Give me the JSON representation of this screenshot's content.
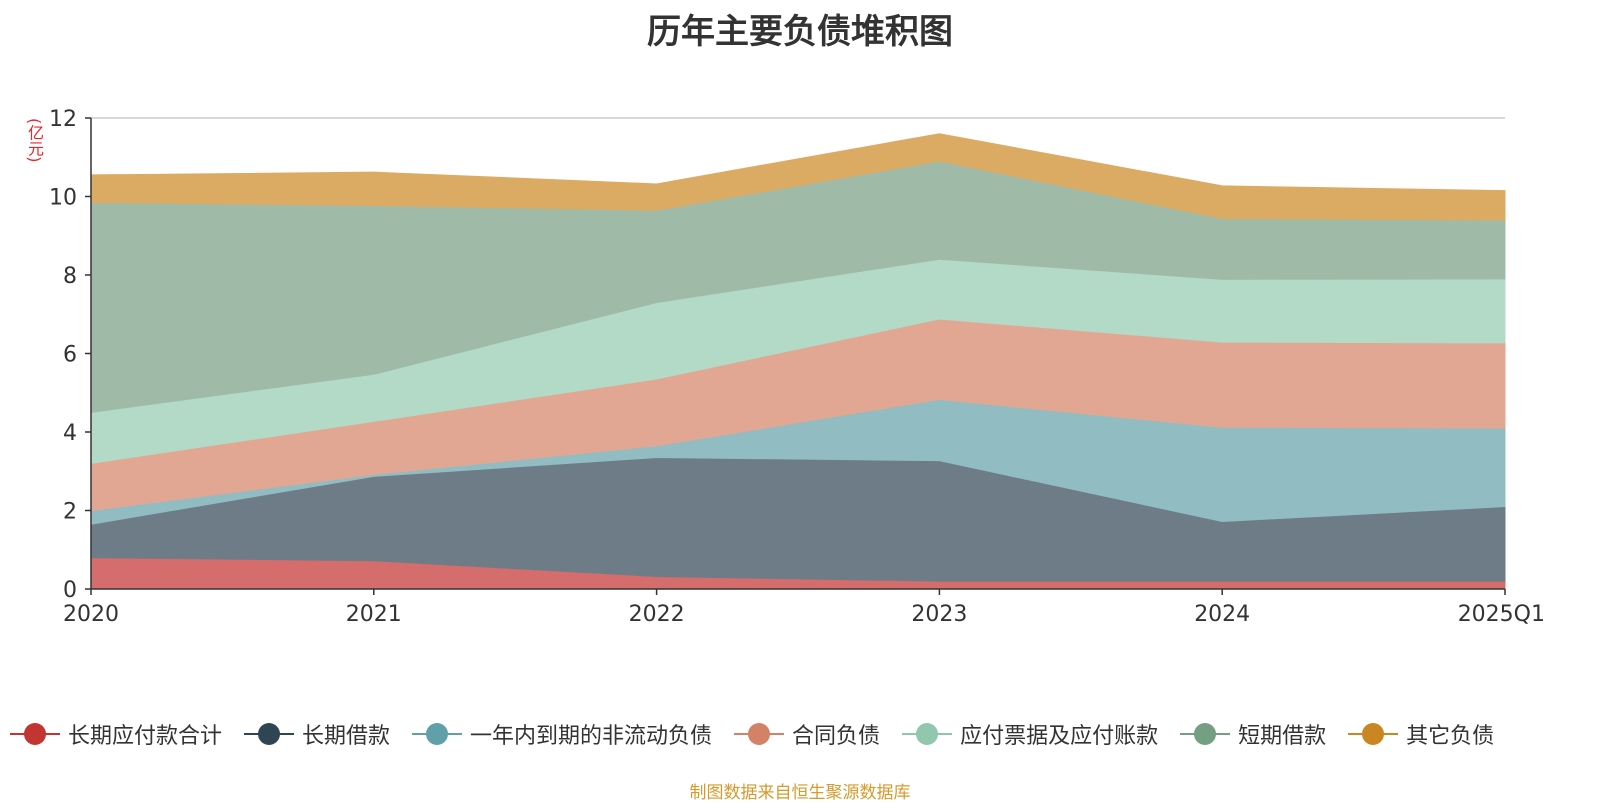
{
  "chart_data": {
    "type": "area",
    "stacked": true,
    "title": "历年主要负债堆积图",
    "ylabel": "(亿元)",
    "xlabel": "",
    "ylim": [
      0,
      12
    ],
    "yticks": [
      0,
      2,
      4,
      6,
      8,
      10,
      12
    ],
    "categories": [
      "2020",
      "2021",
      "2022",
      "2023",
      "2024",
      "2025Q1"
    ],
    "series": [
      {
        "name": "长期应付款合计",
        "color": "#c23531",
        "fill": "#d46d6b",
        "values": [
          0.8,
          0.72,
          0.32,
          0.2,
          0.2,
          0.2
        ]
      },
      {
        "name": "长期借款",
        "color": "#2f4554",
        "fill": "#6e7c88",
        "values": [
          0.85,
          2.15,
          3.03,
          3.07,
          1.52,
          1.9
        ]
      },
      {
        "name": "一年内到期的非流动负债",
        "color": "#61a0a8",
        "fill": "#91bcc2",
        "values": [
          0.35,
          0.05,
          0.3,
          1.56,
          2.4,
          2.0
        ]
      },
      {
        "name": "合同负债",
        "color": "#d48265",
        "fill": "#e2a792",
        "values": [
          1.2,
          1.35,
          1.7,
          2.05,
          2.17,
          2.17
        ]
      },
      {
        "name": "应付票据及应付账款",
        "color": "#91c7ae",
        "fill": "#b2dac7",
        "values": [
          1.3,
          1.2,
          1.95,
          1.52,
          1.6,
          1.63
        ]
      },
      {
        "name": "短期借款",
        "color": "#749f83",
        "fill": "#9fbba8",
        "values": [
          5.35,
          4.3,
          2.35,
          2.5,
          1.55,
          1.5
        ]
      },
      {
        "name": "其它负债",
        "color": "#ca8622",
        "fill": "#dbab63",
        "values": [
          0.7,
          0.85,
          0.67,
          0.7,
          0.83,
          0.75
        ]
      }
    ],
    "grid": true,
    "legend_position": "bottom"
  },
  "source_note": "制图数据来自恒生聚源数据库"
}
